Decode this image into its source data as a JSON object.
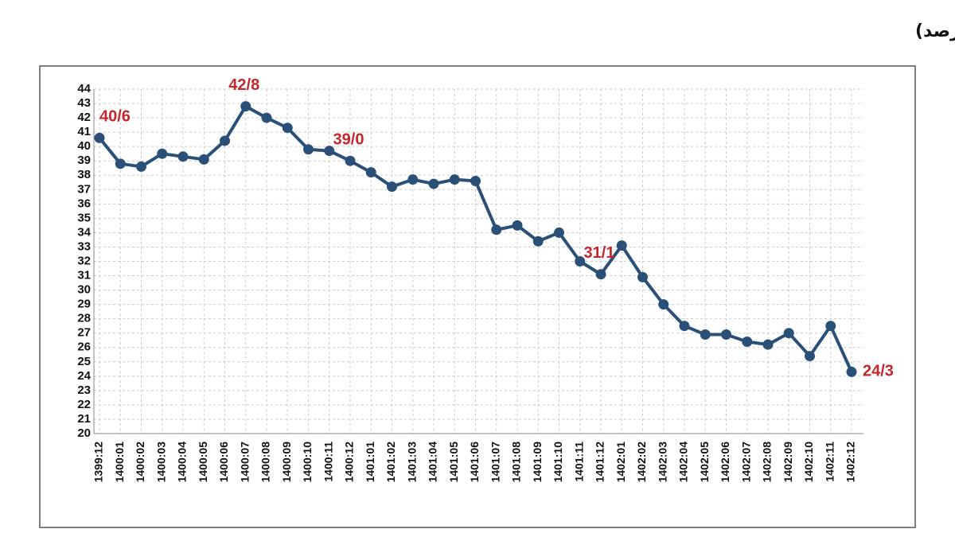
{
  "chart_data": {
    "type": "line",
    "title": "نمودار - روند تحولات نرخ رشد دوازده ماهه نقدینگی (درصد)",
    "categories": [
      "1399:12",
      "1400:01",
      "1400:02",
      "1400:03",
      "1400:04",
      "1400:05",
      "1400:06",
      "1400:07",
      "1400:08",
      "1400:09",
      "1400:10",
      "1400:11",
      "1400:12",
      "1401:01",
      "1401:02",
      "1401:03",
      "1401:04",
      "1401:05",
      "1401:06",
      "1401:07",
      "1401:08",
      "1401:09",
      "1401:10",
      "1401:11",
      "1401:12",
      "1402:01",
      "1402:02",
      "1402:03",
      "1402:04",
      "1402:05",
      "1402:06",
      "1402:07",
      "1402:08",
      "1402:09",
      "1402:10",
      "1402:11",
      "1402:12"
    ],
    "values": [
      40.6,
      38.8,
      38.6,
      39.5,
      39.3,
      39.1,
      40.4,
      42.8,
      42.0,
      41.3,
      39.8,
      39.7,
      39.0,
      38.2,
      37.2,
      37.7,
      37.4,
      37.7,
      37.6,
      34.2,
      34.5,
      33.4,
      34.0,
      32.0,
      31.1,
      33.1,
      30.9,
      29.0,
      27.5,
      26.9,
      26.9,
      26.4,
      26.2,
      27.0,
      25.4,
      27.5,
      24.3
    ],
    "value_labels": [
      "40/6",
      null,
      null,
      null,
      null,
      null,
      null,
      "42/8",
      null,
      null,
      null,
      null,
      "39/0",
      null,
      null,
      null,
      null,
      null,
      null,
      null,
      null,
      null,
      null,
      null,
      "31/1",
      null,
      null,
      null,
      null,
      null,
      null,
      null,
      null,
      null,
      null,
      null,
      "24/3"
    ],
    "color": "#2a5078",
    "label_color": "#c0282d",
    "ylim": [
      20,
      44
    ],
    "yticks": [
      20,
      21,
      22,
      23,
      24,
      25,
      26,
      27,
      28,
      29,
      30,
      31,
      32,
      33,
      34,
      35,
      36,
      37,
      38,
      39,
      40,
      41,
      42,
      43,
      44
    ],
    "grid": true
  }
}
